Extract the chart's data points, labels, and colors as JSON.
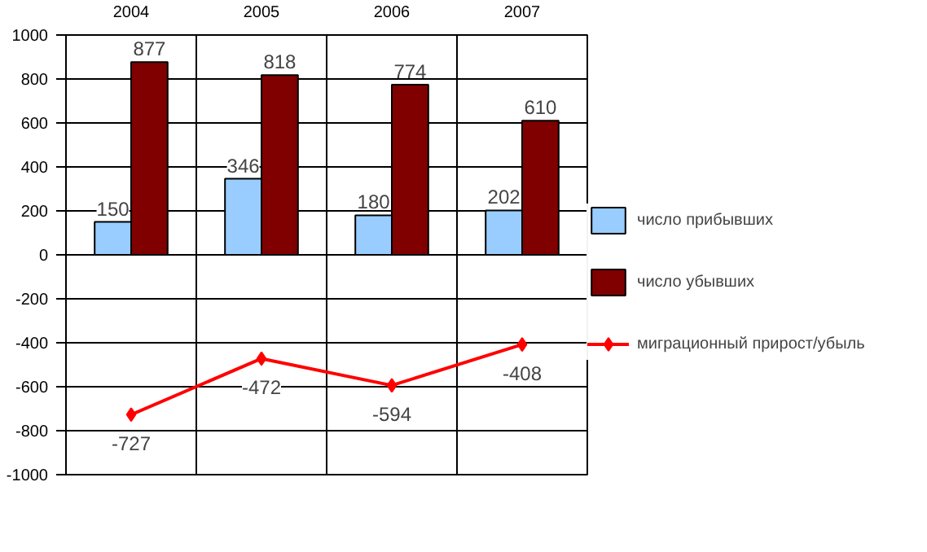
{
  "chart_data": {
    "type": "bar",
    "categories": [
      "2004",
      "2005",
      "2006",
      "2007"
    ],
    "series": [
      {
        "name": "число прибывших",
        "color": "#99ccff",
        "values": [
          150,
          346,
          180,
          202
        ]
      },
      {
        "name": "число убывших",
        "color": "#800000",
        "values": [
          877,
          818,
          774,
          610
        ]
      },
      {
        "name": "миграционный прирост/убыль",
        "type": "line",
        "color": "#ff0000",
        "values": [
          -727,
          -472,
          -594,
          -408
        ]
      }
    ],
    "ylim": [
      -1000,
      1000
    ],
    "yticks": [
      -1000,
      -800,
      -600,
      -400,
      -200,
      0,
      200,
      400,
      600,
      800,
      1000
    ],
    "grid": true,
    "legend": "right",
    "marker": "diamond",
    "data_labels": true
  }
}
